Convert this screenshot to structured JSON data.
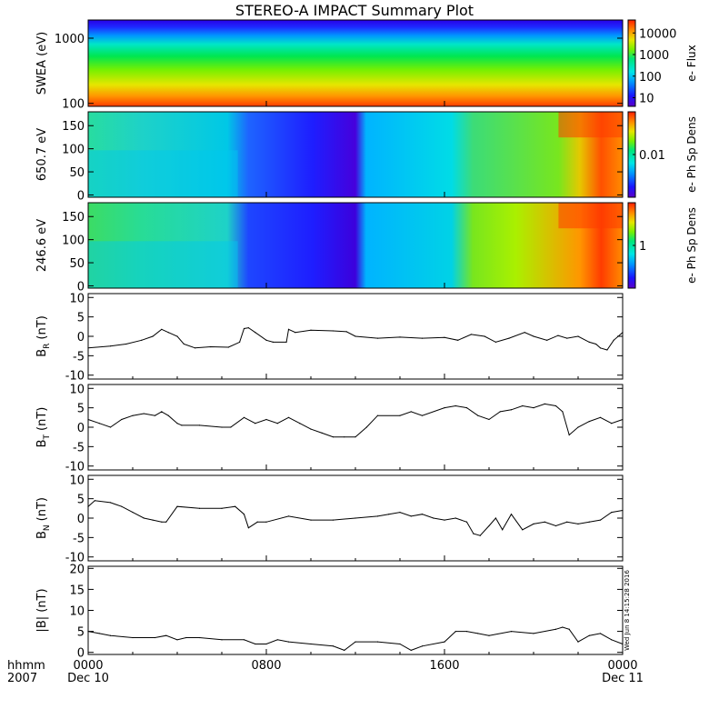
{
  "chart_data": {
    "type": "line",
    "title": "STEREO-A IMPACT Summary Plot",
    "x_axis": {
      "title_lines": [
        "hhmm",
        "2007"
      ],
      "tick_labels": [
        "0000",
        "0800",
        "1600",
        "0000"
      ],
      "date_labels": [
        "Dec 10",
        "",
        "",
        "Dec 11"
      ],
      "range_hours": [
        0,
        24
      ]
    },
    "stamp": "Wed Jun  8 14:15:28 2016",
    "spectrograms": [
      {
        "id": "swea",
        "ylabel": "SWEA (eV)",
        "yscale": "log",
        "ylim": [
          90,
          1900
        ],
        "yticks": [
          100,
          1000
        ],
        "ytick_labels": [
          "100",
          "1000"
        ],
        "colorbar_label": "e- Flux",
        "colorbar_scale": "log",
        "colorbar_ticks": [
          "10",
          "100",
          "1000",
          "10000"
        ]
      },
      {
        "id": "pad650",
        "ylabel": "650.7 eV",
        "yscale": "linear",
        "ylim": [
          -5,
          180
        ],
        "yticks": [
          0,
          50,
          100,
          150
        ],
        "ytick_labels": [
          "0",
          "50",
          "100",
          "150"
        ],
        "colorbar_label": "e- Ph Sp Dens",
        "colorbar_scale": "log",
        "colorbar_ticks": [
          "0.01"
        ]
      },
      {
        "id": "pad246",
        "ylabel": "246.6 eV",
        "yscale": "linear",
        "ylim": [
          -5,
          180
        ],
        "yticks": [
          0,
          50,
          100,
          150
        ],
        "ytick_labels": [
          "0",
          "50",
          "100",
          "150"
        ],
        "colorbar_label": "e- Ph Sp Dens",
        "colorbar_scale": "log",
        "colorbar_ticks": [
          "1"
        ]
      }
    ],
    "line_panels": [
      {
        "id": "br",
        "ylabel_main": "B",
        "ylabel_sub": "R",
        "ylabel_unit": "(nT)",
        "ylim": [
          -11,
          11
        ],
        "yticks": [
          -10,
          -5,
          0,
          5,
          10
        ],
        "ytick_labels": [
          "-10",
          "-5",
          "0",
          "5",
          "10"
        ],
        "x": [
          0,
          1,
          1.7,
          2.4,
          2.9,
          3.3,
          3.6,
          4,
          4.3,
          4.8,
          5.5,
          6.3,
          6.8,
          7,
          7.2,
          7.5,
          8,
          8.3,
          8.9,
          9,
          9.3,
          10,
          11,
          11.6,
          12,
          13,
          14,
          15,
          16,
          16.6,
          17.2,
          17.8,
          18.3,
          18.9,
          19.6,
          20,
          20.6,
          21.1,
          21.5,
          22,
          22.5,
          22.8,
          23,
          23.3,
          23.6,
          24
        ],
        "y": [
          -3,
          -2.5,
          -2,
          -1,
          0,
          1.8,
          1,
          0,
          -2,
          -3,
          -2.7,
          -2.8,
          -1.5,
          2,
          2.2,
          1,
          -1,
          -1.5,
          -1.5,
          1.8,
          1,
          1.6,
          1.4,
          1.2,
          0,
          -0.5,
          -0.2,
          -0.5,
          -0.3,
          -1,
          0.5,
          0,
          -1.5,
          -0.5,
          1,
          0,
          -1,
          0.2,
          -0.5,
          0,
          -1.5,
          -2,
          -3,
          -3.5,
          -1,
          1
        ]
      },
      {
        "id": "bt",
        "ylabel_main": "B",
        "ylabel_sub": "T",
        "ylabel_unit": "(nT)",
        "ylim": [
          -11,
          11
        ],
        "yticks": [
          -10,
          -5,
          0,
          5,
          10
        ],
        "ytick_labels": [
          "-10",
          "-5",
          "0",
          "5",
          "10"
        ],
        "x": [
          0,
          0.5,
          1,
          1.5,
          2,
          2.5,
          3,
          3.3,
          3.6,
          4,
          4.2,
          5,
          6,
          6.4,
          7,
          7.5,
          8,
          8.5,
          9,
          9.5,
          10,
          10.5,
          11,
          11.5,
          12,
          12.5,
          13,
          14,
          14.5,
          15,
          16,
          16.5,
          17,
          17.5,
          18,
          18.5,
          19,
          19.5,
          20,
          20.5,
          21,
          21.3,
          21.6,
          22,
          22.5,
          23,
          23.5,
          24
        ],
        "y": [
          2,
          1,
          0,
          2,
          3,
          3.5,
          3,
          4,
          3,
          1,
          0.5,
          0.5,
          0,
          0,
          2.5,
          1,
          2,
          1,
          2.5,
          1,
          -0.5,
          -1.5,
          -2.5,
          -2.5,
          -2.5,
          0,
          3,
          3,
          4,
          3,
          5,
          5.5,
          5,
          3,
          2,
          4,
          4.5,
          5.5,
          5,
          6,
          5.5,
          4,
          -2,
          0,
          1.5,
          2.5,
          1,
          2
        ]
      },
      {
        "id": "bn",
        "ylabel_main": "B",
        "ylabel_sub": "N",
        "ylabel_unit": "(nT)",
        "ylim": [
          -11,
          11
        ],
        "yticks": [
          -10,
          -5,
          0,
          5,
          10
        ],
        "ytick_labels": [
          "-10",
          "-5",
          "0",
          "5",
          "10"
        ],
        "x": [
          0,
          0.3,
          1,
          1.5,
          2,
          2.5,
          2.9,
          3.3,
          3.5,
          4,
          5,
          6,
          6.6,
          7,
          7.2,
          7.6,
          8,
          9,
          10,
          11,
          12,
          13,
          13.5,
          14,
          14.5,
          15,
          15.5,
          16,
          16.5,
          17,
          17.3,
          17.6,
          18,
          18.3,
          18.6,
          19,
          19.5,
          20,
          20.5,
          21,
          21.5,
          22,
          22.5,
          23,
          23.5,
          24
        ],
        "y": [
          3,
          4.5,
          4,
          3,
          1.5,
          0,
          -0.5,
          -1,
          -1,
          3,
          2.5,
          2.5,
          3,
          1,
          -2.5,
          -1,
          -1,
          0.5,
          -0.5,
          -0.5,
          0,
          0.5,
          1,
          1.5,
          0.5,
          1,
          0,
          -0.5,
          0,
          -1,
          -4,
          -4.5,
          -2,
          0,
          -3,
          1,
          -3,
          -1.5,
          -1,
          -2,
          -1,
          -1.5,
          -1,
          -0.5,
          1.5,
          2
        ]
      },
      {
        "id": "bmag",
        "ylabel_main": "|B| (nT)",
        "ylabel_sub": "",
        "ylabel_unit": "",
        "ylim": [
          -0.5,
          20.5
        ],
        "yticks": [
          0,
          5,
          10,
          15,
          20
        ],
        "ytick_labels": [
          "0",
          "5",
          "10",
          "15",
          "20"
        ],
        "x": [
          0,
          0.5,
          1,
          2,
          3,
          3.5,
          4,
          4.4,
          5,
          6,
          7,
          7.5,
          8,
          8.5,
          9,
          10,
          11,
          11.5,
          12,
          13,
          14,
          14.5,
          15,
          16,
          16.5,
          17,
          17.5,
          18,
          19,
          20,
          21,
          21.3,
          21.6,
          22,
          22.5,
          23,
          23.5,
          24
        ],
        "y": [
          5,
          4.5,
          4,
          3.5,
          3.5,
          4,
          3,
          3.5,
          3.5,
          3,
          3,
          2,
          2,
          3,
          2.5,
          2,
          1.5,
          0.5,
          2.5,
          2.5,
          2,
          0.5,
          1.5,
          2.5,
          5,
          5,
          4.5,
          4,
          5,
          4.5,
          5.5,
          6,
          5.5,
          2.5,
          4,
          4.5,
          3,
          2
        ]
      }
    ]
  }
}
